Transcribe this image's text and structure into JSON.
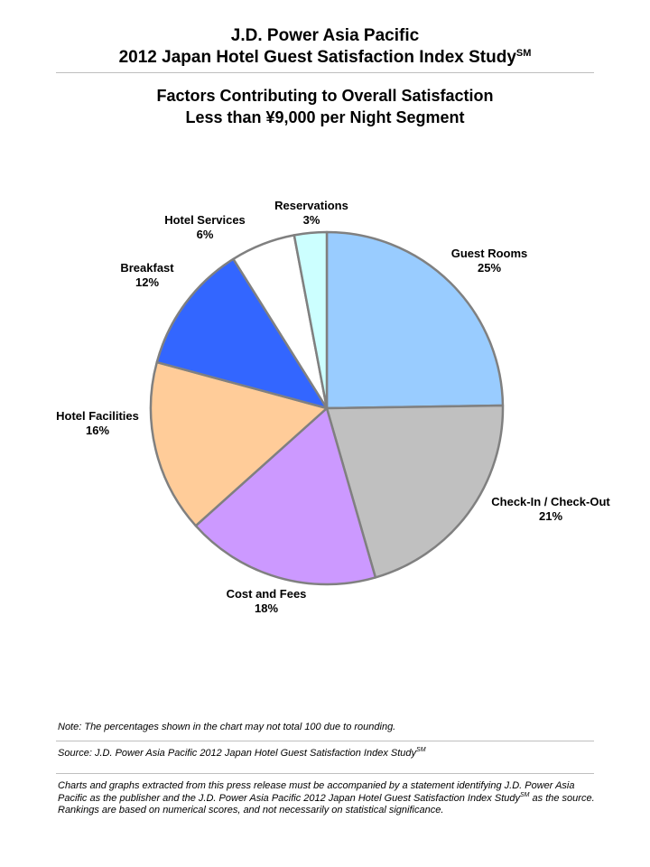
{
  "header": {
    "line1": "J.D. Power Asia Pacific",
    "line2": "2012 Japan Hotel Guest Satisfaction Index Study",
    "line2_sup": "SM"
  },
  "chart_data": {
    "type": "pie",
    "title": "Factors Contributing to Overall Satisfaction",
    "subtitle": "Less than ¥9,000 per Night Segment",
    "slices": [
      {
        "name": "Guest Rooms",
        "value": 25,
        "label": "25%",
        "color": "#99ccff"
      },
      {
        "name": "Check-In / Check-Out",
        "value": 21,
        "label": "21%",
        "color": "#c0c0c0"
      },
      {
        "name": "Cost and Fees",
        "value": 18,
        "label": "18%",
        "color": "#cc99ff"
      },
      {
        "name": "Hotel Facilities",
        "value": 16,
        "label": "16%",
        "color": "#ffcc99"
      },
      {
        "name": "Breakfast",
        "value": 12,
        "label": "12%",
        "color": "#3366ff"
      },
      {
        "name": "Hotel Services",
        "value": 6,
        "label": "6%",
        "color": "#ffffff"
      },
      {
        "name": "Reservations",
        "value": 3,
        "label": "3%",
        "color": "#ccffff"
      }
    ],
    "stroke_color": "#808080"
  },
  "footer": {
    "note": "Note: The percentages shown in the chart may not total 100 due to rounding.",
    "source": "Source: J.D. Power Asia Pacific 2012 Japan Hotel Guest Satisfaction Index Study",
    "source_sup": "SM",
    "disclaimer_1": "Charts and graphs extracted from this press release must be accompanied by a statement identifying J.D. Power Asia Pacific as the publisher and the J.D. Power Asia Pacific 2012 Japan Hotel Guest Satisfaction Index Study",
    "disclaimer_sup": "SM",
    "disclaimer_2": " as the source. Rankings are based on numerical scores, and not necessarily on statistical significance."
  }
}
